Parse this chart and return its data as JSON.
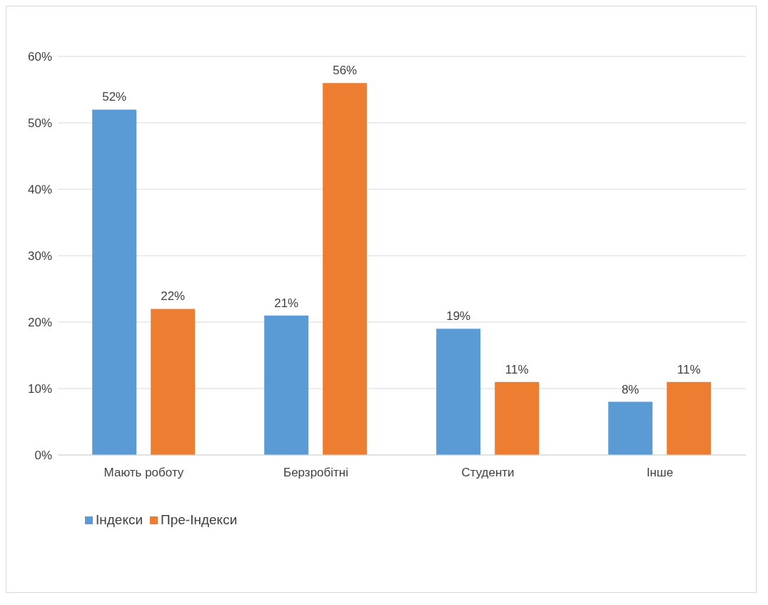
{
  "chart_data": {
    "type": "bar",
    "categories": [
      "Мають роботу",
      "Берзробітні",
      "Студенти",
      "Інше"
    ],
    "series": [
      {
        "name": "Індекси",
        "color": "#5b9bd5",
        "values": [
          52,
          21,
          19,
          8
        ],
        "value_labels": [
          "52%",
          "21%",
          "19%",
          "8%"
        ]
      },
      {
        "name": "Пре-Індекси",
        "color": "#ed7d31",
        "values": [
          22,
          56,
          11,
          11
        ],
        "value_labels": [
          "22%",
          "56%",
          "11%",
          "11%"
        ]
      }
    ],
    "ylim": [
      0,
      60
    ],
    "yticks": [
      {
        "value": 0,
        "label": "0%"
      },
      {
        "value": 10,
        "label": "10%"
      },
      {
        "value": 20,
        "label": "20%"
      },
      {
        "value": 30,
        "label": "30%"
      },
      {
        "value": 40,
        "label": "40%"
      },
      {
        "value": 50,
        "label": "50%"
      },
      {
        "value": 60,
        "label": "60%"
      }
    ],
    "grid": "y",
    "legend": "bottom left"
  }
}
